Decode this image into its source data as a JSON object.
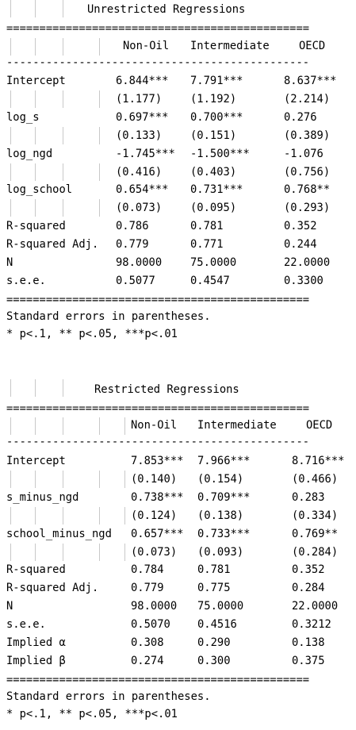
{
  "unrestricted": {
    "title": "Unrestricted Regressions",
    "rule_double": "==============================================",
    "rule_single": "----------------------------------------------",
    "headers": [
      "Non-Oil",
      "Intermediate",
      "OECD"
    ],
    "rows": [
      {
        "label": "Intercept",
        "cells": [
          "6.844***",
          "7.791***",
          "8.637***"
        ]
      },
      {
        "label": "",
        "cells": [
          "(1.177)",
          "(1.192)",
          "(2.214)"
        ]
      },
      {
        "label": "log_s",
        "cells": [
          "0.697***",
          "0.700***",
          "0.276"
        ]
      },
      {
        "label": "",
        "cells": [
          "(0.133)",
          "(0.151)",
          "(0.389)"
        ]
      },
      {
        "label": "log_ngd",
        "cells": [
          "-1.745***",
          "-1.500***",
          "-1.076"
        ]
      },
      {
        "label": "",
        "cells": [
          "(0.416)",
          "(0.403)",
          "(0.756)"
        ]
      },
      {
        "label": "log_school",
        "cells": [
          "0.654***",
          "0.731***",
          "0.768**"
        ]
      },
      {
        "label": "",
        "cells": [
          "(0.073)",
          "(0.095)",
          "(0.293)"
        ]
      },
      {
        "label": "R-squared",
        "cells": [
          "0.786",
          "0.781",
          "0.352"
        ]
      },
      {
        "label": "R-squared Adj.",
        "cells": [
          "0.779",
          "0.771",
          "0.244"
        ]
      },
      {
        "label": "N",
        "cells": [
          "98.0000",
          "75.0000",
          "22.0000"
        ]
      },
      {
        "label": "s.e.e.",
        "cells": [
          "0.5077",
          "0.4547",
          "0.3300"
        ]
      }
    ],
    "note1": "Standard errors in parentheses.",
    "note2": "* p<.1, ** p<.05, ***p<.01"
  },
  "restricted": {
    "title": "Restricted Regressions",
    "rule_double": "==============================================",
    "rule_single": "----------------------------------------------",
    "headers": [
      "Non-Oil",
      "Intermediate",
      "OECD"
    ],
    "rows": [
      {
        "label": "Intercept",
        "cells": [
          "7.853***",
          "7.966***",
          "8.716***"
        ]
      },
      {
        "label": "",
        "cells": [
          "(0.140)",
          "(0.154)",
          "(0.466)"
        ]
      },
      {
        "label": "s_minus_ngd",
        "cells": [
          "0.738***",
          "0.709***",
          "0.283"
        ]
      },
      {
        "label": "",
        "cells": [
          "(0.124)",
          "(0.138)",
          "(0.334)"
        ]
      },
      {
        "label": "school_minus_ngd",
        "cells": [
          "0.657***",
          "0.733***",
          "0.769**"
        ]
      },
      {
        "label": "",
        "cells": [
          "(0.073)",
          "(0.093)",
          "(0.284)"
        ]
      },
      {
        "label": "R-squared",
        "cells": [
          "0.784",
          "0.781",
          "0.352"
        ]
      },
      {
        "label": "R-squared Adj.",
        "cells": [
          "0.779",
          "0.775",
          "0.284"
        ]
      },
      {
        "label": "N",
        "cells": [
          "98.0000",
          "75.0000",
          "22.0000"
        ]
      },
      {
        "label": "s.e.e.",
        "cells": [
          "0.5070",
          "0.4516",
          "0.3212"
        ]
      },
      {
        "label": "Implied α",
        "cells": [
          "0.308",
          "0.290",
          "0.138"
        ]
      },
      {
        "label": "Implied β",
        "cells": [
          "0.274",
          "0.300",
          "0.375"
        ]
      }
    ],
    "note1": "Standard errors in parentheses.",
    "note2": "* p<.1, ** p<.05, ***p<.01"
  }
}
